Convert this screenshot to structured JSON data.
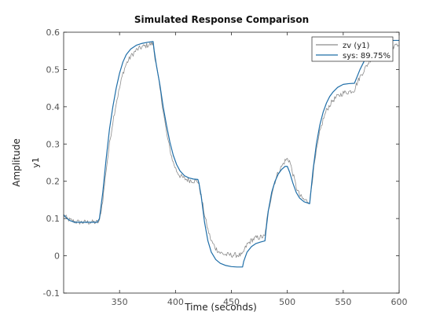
{
  "chart_data": {
    "type": "line",
    "title": "Simulated Response Comparison",
    "xlabel": "Time (seconds)",
    "ylabel": "Amplitude",
    "channel_label": "y1",
    "xlim": [
      300,
      600
    ],
    "ylim": [
      -0.1,
      0.6
    ],
    "xticks": [
      350,
      400,
      450,
      500,
      550,
      600
    ],
    "yticks": [
      -0.1,
      0,
      0.1,
      0.2,
      0.3,
      0.4,
      0.5,
      0.6
    ],
    "grid": false,
    "legend_position": "top-right",
    "series": [
      {
        "name": "zv (y1)",
        "color": "#8c8c8c",
        "noisy": true,
        "x": [
          300,
          303,
          306,
          310,
          315,
          320,
          325,
          330,
          332,
          335,
          338,
          341,
          344,
          347,
          350,
          353,
          356,
          360,
          365,
          370,
          375,
          380,
          381,
          383,
          386,
          389,
          392,
          395,
          398,
          401,
          404,
          408,
          412,
          416,
          420,
          421,
          423,
          426,
          429,
          432,
          436,
          440,
          445,
          450,
          455,
          460,
          461,
          464,
          468,
          472,
          476,
          480,
          481,
          483,
          486,
          489,
          492,
          495,
          498,
          500,
          502,
          505,
          508,
          511,
          515,
          520,
          521,
          523,
          526,
          529,
          532,
          535,
          538,
          541,
          545,
          550,
          555,
          560,
          561,
          565,
          570,
          575,
          580,
          585,
          590,
          595,
          600
        ],
        "y": [
          0.11,
          0.1,
          0.095,
          0.092,
          0.09,
          0.09,
          0.09,
          0.09,
          0.092,
          0.15,
          0.23,
          0.3,
          0.36,
          0.41,
          0.45,
          0.49,
          0.515,
          0.535,
          0.552,
          0.56,
          0.565,
          0.57,
          0.545,
          0.51,
          0.45,
          0.39,
          0.33,
          0.285,
          0.25,
          0.228,
          0.215,
          0.207,
          0.203,
          0.201,
          0.2,
          0.19,
          0.16,
          0.11,
          0.07,
          0.04,
          0.02,
          0.008,
          0.003,
          0.002,
          0.002,
          0.002,
          0.012,
          0.03,
          0.042,
          0.048,
          0.05,
          0.052,
          0.08,
          0.12,
          0.165,
          0.2,
          0.225,
          0.24,
          0.255,
          0.26,
          0.255,
          0.22,
          0.185,
          0.162,
          0.15,
          0.145,
          0.17,
          0.22,
          0.28,
          0.33,
          0.365,
          0.39,
          0.405,
          0.418,
          0.428,
          0.437,
          0.44,
          0.445,
          0.455,
          0.48,
          0.505,
          0.53,
          0.55,
          0.56,
          0.565,
          0.562,
          0.565
        ]
      },
      {
        "name": "sys: 89.75%",
        "color": "#1f6ea8",
        "noisy": false,
        "x": [
          300,
          303,
          306,
          310,
          315,
          320,
          325,
          330,
          332,
          335,
          338,
          341,
          344,
          347,
          350,
          353,
          356,
          360,
          365,
          370,
          375,
          380,
          381,
          383,
          386,
          389,
          392,
          395,
          398,
          401,
          404,
          408,
          412,
          416,
          420,
          421,
          423,
          426,
          429,
          432,
          436,
          440,
          445,
          450,
          455,
          460,
          461,
          464,
          468,
          472,
          476,
          480,
          481,
          483,
          486,
          489,
          492,
          495,
          498,
          500,
          502,
          505,
          508,
          511,
          515,
          520,
          521,
          523,
          526,
          529,
          532,
          535,
          538,
          541,
          545,
          550,
          555,
          560,
          561,
          565,
          570,
          575,
          580,
          585,
          590,
          595,
          600
        ],
        "y": [
          0.11,
          0.1,
          0.094,
          0.09,
          0.09,
          0.09,
          0.09,
          0.09,
          0.1,
          0.17,
          0.26,
          0.34,
          0.4,
          0.45,
          0.49,
          0.52,
          0.54,
          0.555,
          0.565,
          0.57,
          0.573,
          0.575,
          0.55,
          0.51,
          0.46,
          0.4,
          0.35,
          0.305,
          0.27,
          0.245,
          0.228,
          0.215,
          0.209,
          0.206,
          0.205,
          0.195,
          0.16,
          0.09,
          0.04,
          0.01,
          -0.01,
          -0.02,
          -0.026,
          -0.029,
          -0.03,
          -0.03,
          -0.015,
          0.01,
          0.025,
          0.033,
          0.037,
          0.04,
          0.07,
          0.12,
          0.17,
          0.2,
          0.22,
          0.232,
          0.24,
          0.24,
          0.225,
          0.195,
          0.17,
          0.155,
          0.145,
          0.14,
          0.17,
          0.23,
          0.3,
          0.35,
          0.385,
          0.41,
          0.428,
          0.44,
          0.452,
          0.46,
          0.462,
          0.463,
          0.47,
          0.5,
          0.53,
          0.55,
          0.565,
          0.572,
          0.576,
          0.578,
          0.578
        ]
      }
    ]
  }
}
